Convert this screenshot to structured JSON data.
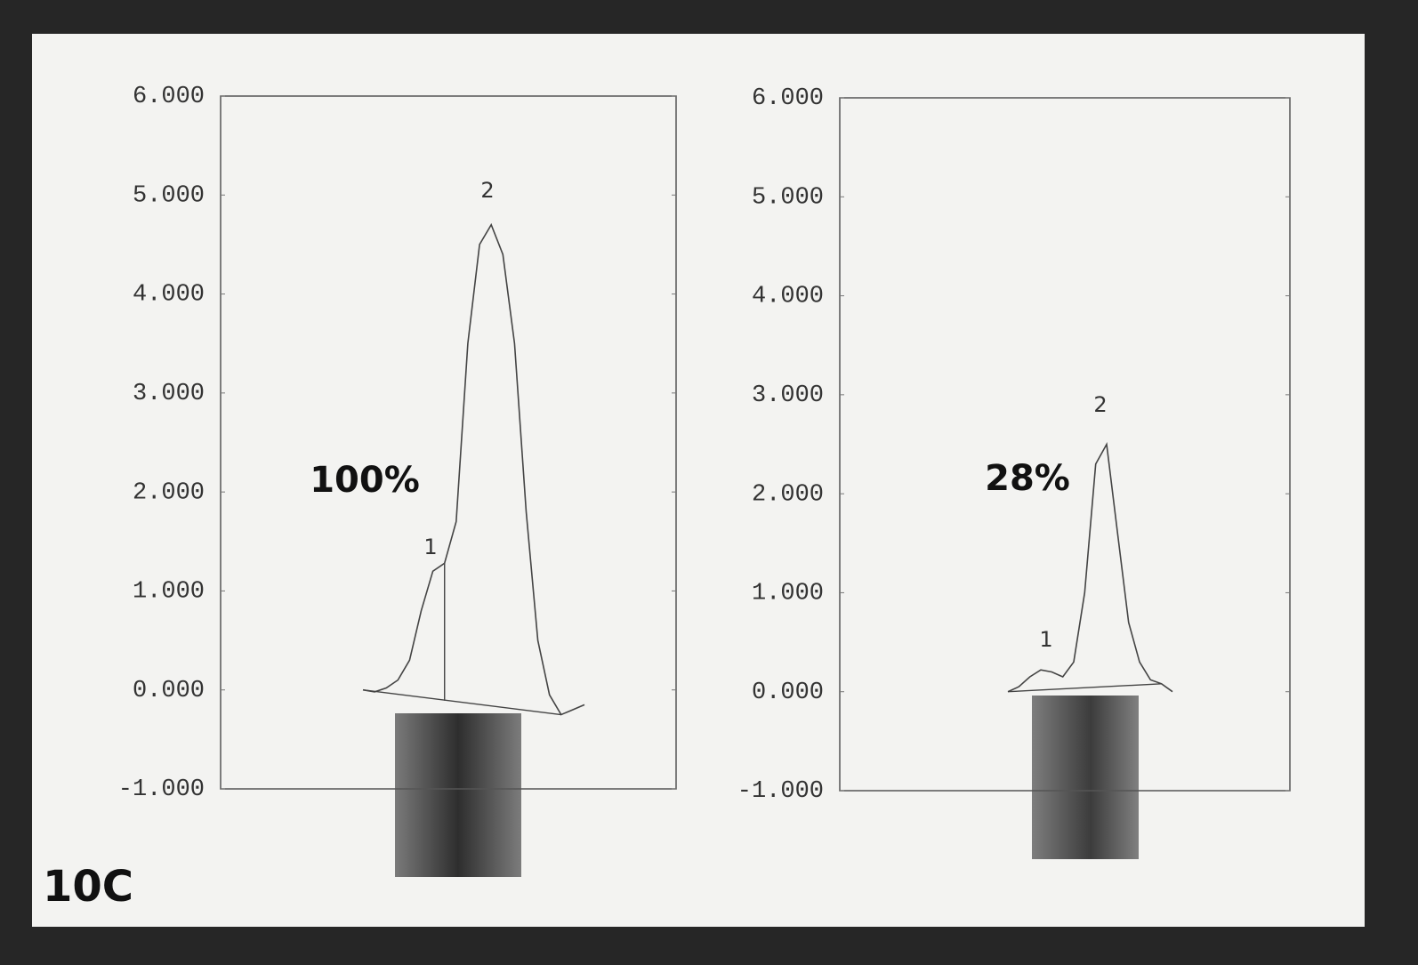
{
  "panel_label": "10C",
  "chart_data": [
    {
      "type": "line",
      "percent_label": "100%",
      "peak_labels": [
        "1",
        "2"
      ],
      "values": [
        0.0,
        -0.02,
        0.02,
        0.1,
        0.3,
        0.8,
        1.2,
        1.28,
        1.7,
        3.5,
        4.5,
        4.7,
        4.4,
        3.5,
        1.8,
        0.5,
        -0.05,
        -0.25,
        -0.2,
        -0.15
      ],
      "color": "#444444",
      "ylim": [
        -1,
        6
      ],
      "yticks": [
        {
          "value": -1,
          "label": "-1.000"
        },
        {
          "value": 0,
          "label": "0.000"
        },
        {
          "value": 1,
          "label": "1.000"
        },
        {
          "value": 2,
          "label": "2.000"
        },
        {
          "value": 3,
          "label": "3.000"
        },
        {
          "value": 4,
          "label": "4.000"
        },
        {
          "value": 5,
          "label": "5.000"
        },
        {
          "value": 6,
          "label": "6.000"
        }
      ]
    },
    {
      "type": "line",
      "percent_label": "28%",
      "peak_labels": [
        "1",
        "2"
      ],
      "values": [
        0.0,
        0.05,
        0.15,
        0.22,
        0.2,
        0.15,
        0.3,
        1.0,
        2.3,
        2.5,
        1.6,
        0.7,
        0.3,
        0.12,
        0.08,
        0.0
      ],
      "color": "#444444",
      "ylim": [
        -1,
        6
      ],
      "yticks": [
        {
          "value": -1,
          "label": "-1.000"
        },
        {
          "value": 0,
          "label": "0.000"
        },
        {
          "value": 1,
          "label": "1.000"
        },
        {
          "value": 2,
          "label": "2.000"
        },
        {
          "value": 3,
          "label": "3.000"
        },
        {
          "value": 4,
          "label": "4.000"
        },
        {
          "value": 5,
          "label": "5.000"
        },
        {
          "value": 6,
          "label": "6.000"
        }
      ]
    }
  ]
}
